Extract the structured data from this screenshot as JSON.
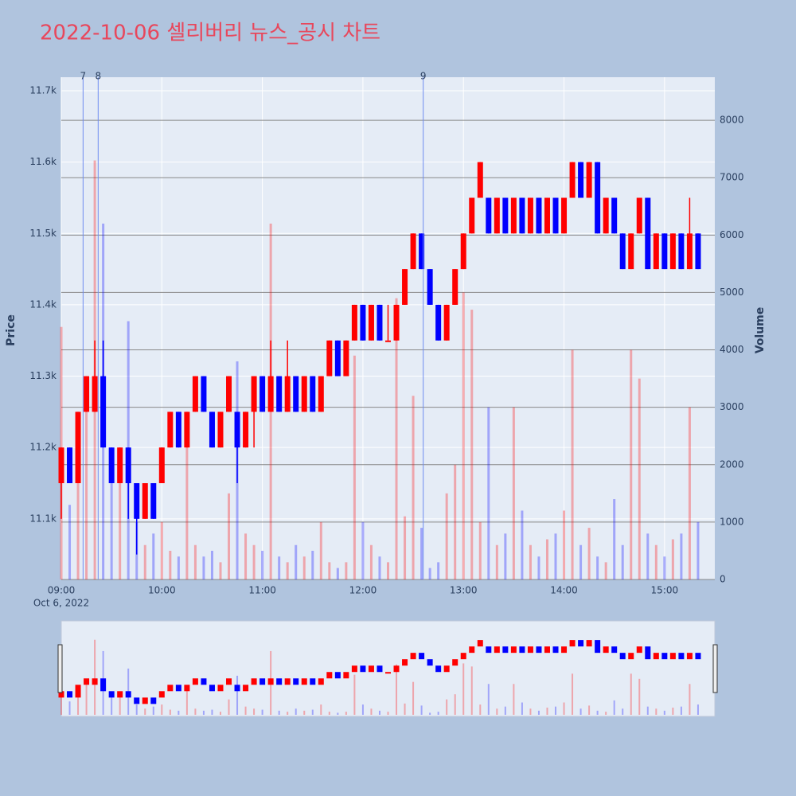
{
  "chart_data": {
    "type": "candlestick",
    "title": "2022-10-06 셀리버리 뉴스_공시 차트",
    "ylabel": "Price",
    "y2label": "Volume",
    "x_date_label": "Oct 6, 2022",
    "increasing_color": "#ff0000",
    "decreasing_color": "#0000ff",
    "xlim": [
      "09:00",
      "15:30"
    ],
    "xticks": [
      "09:00",
      "10:00",
      "11:00",
      "12:00",
      "13:00",
      "14:00",
      "15:00"
    ],
    "ylim": [
      11015,
      11719
    ],
    "yticks": [
      {
        "value": 11100,
        "label": "11.1k"
      },
      {
        "value": 11200,
        "label": "11.2k"
      },
      {
        "value": 11300,
        "label": "11.3k"
      },
      {
        "value": 11400,
        "label": "11.4k"
      },
      {
        "value": 11500,
        "label": "11.5k"
      },
      {
        "value": 11600,
        "label": "11.6k"
      },
      {
        "value": 11700,
        "label": "11.7k"
      }
    ],
    "y2lim": [
      0,
      8750
    ],
    "y2ticks": [
      0,
      1000,
      2000,
      3000,
      4000,
      5000,
      6000,
      7000,
      8000
    ],
    "annotations": [
      {
        "text": "7",
        "x": "09:13"
      },
      {
        "text": "8",
        "x": "09:22"
      },
      {
        "text": "9",
        "x": "12:36"
      }
    ],
    "x": [
      "09:00",
      "09:05",
      "09:10",
      "09:15",
      "09:20",
      "09:25",
      "09:30",
      "09:35",
      "09:40",
      "09:45",
      "09:50",
      "09:55",
      "10:00",
      "10:05",
      "10:10",
      "10:15",
      "10:20",
      "10:25",
      "10:30",
      "10:35",
      "10:40",
      "10:45",
      "10:50",
      "10:55",
      "11:00",
      "11:05",
      "11:10",
      "11:15",
      "11:20",
      "11:25",
      "11:30",
      "11:35",
      "11:40",
      "11:45",
      "11:50",
      "11:55",
      "12:00",
      "12:05",
      "12:10",
      "12:15",
      "12:20",
      "12:25",
      "12:30",
      "12:35",
      "12:40",
      "12:45",
      "12:50",
      "12:55",
      "13:00",
      "13:05",
      "13:10",
      "13:15",
      "13:20",
      "13:25",
      "13:30",
      "13:35",
      "13:40",
      "13:45",
      "13:50",
      "13:55",
      "14:00",
      "14:05",
      "14:10",
      "14:15",
      "14:20",
      "14:25",
      "14:30",
      "14:35",
      "14:40",
      "14:45",
      "14:50",
      "14:55",
      "15:00",
      "15:05",
      "15:10",
      "15:15",
      "15:20"
    ],
    "open": [
      11150,
      11200,
      11150,
      11250,
      11250,
      11300,
      11200,
      11150,
      11200,
      11150,
      11100,
      11150,
      11150,
      11200,
      11250,
      11200,
      11250,
      11300,
      11250,
      11200,
      11250,
      11250,
      11200,
      11250,
      11300,
      11250,
      11300,
      11250,
      11300,
      11250,
      11300,
      11250,
      11300,
      11350,
      11300,
      11350,
      11400,
      11350,
      11400,
      11350,
      11350,
      11400,
      11450,
      11500,
      11450,
      11400,
      11350,
      11400,
      11450,
      11500,
      11550,
      11550,
      11500,
      11550,
      11500,
      11550,
      11500,
      11550,
      11500,
      11550,
      11500,
      11550,
      11600,
      11550,
      11600,
      11500,
      11550,
      11500,
      11450,
      11500,
      11550,
      11450,
      11500,
      11450,
      11500,
      11450,
      11500
    ],
    "high": [
      11200,
      11200,
      11250,
      11300,
      11350,
      11350,
      11200,
      11200,
      11200,
      11150,
      11150,
      11150,
      11200,
      11250,
      11250,
      11250,
      11300,
      11300,
      11250,
      11250,
      11300,
      11250,
      11250,
      11300,
      11300,
      11350,
      11300,
      11350,
      11300,
      11300,
      11300,
      11300,
      11350,
      11350,
      11350,
      11400,
      11400,
      11400,
      11400,
      11400,
      11400,
      11450,
      11500,
      11500,
      11450,
      11400,
      11400,
      11450,
      11500,
      11550,
      11600,
      11550,
      11550,
      11550,
      11550,
      11550,
      11550,
      11550,
      11550,
      11550,
      11550,
      11600,
      11600,
      11600,
      11600,
      11550,
      11550,
      11500,
      11500,
      11550,
      11550,
      11500,
      11500,
      11500,
      11500,
      11550,
      11500
    ],
    "low": [
      11100,
      11150,
      11150,
      11250,
      11250,
      11200,
      11150,
      11150,
      11100,
      11050,
      11100,
      11100,
      11150,
      11200,
      11200,
      11200,
      11250,
      11250,
      11200,
      11200,
      11250,
      11150,
      11200,
      11200,
      11250,
      11250,
      11250,
      11250,
      11250,
      11250,
      11250,
      11250,
      11300,
      11300,
      11300,
      11350,
      11350,
      11350,
      11350,
      11350,
      11350,
      11400,
      11450,
      11450,
      11400,
      11350,
      11350,
      11400,
      11450,
      11500,
      11550,
      11500,
      11500,
      11500,
      11500,
      11500,
      11500,
      11500,
      11500,
      11500,
      11500,
      11550,
      11550,
      11550,
      11500,
      11500,
      11500,
      11450,
      11450,
      11500,
      11450,
      11450,
      11450,
      11450,
      11450,
      11450,
      11450
    ],
    "close": [
      11200,
      11150,
      11250,
      11300,
      11300,
      11200,
      11150,
      11200,
      11150,
      11100,
      11150,
      11100,
      11200,
      11250,
      11200,
      11250,
      11300,
      11250,
      11200,
      11250,
      11300,
      11200,
      11250,
      11300,
      11250,
      11300,
      11250,
      11300,
      11250,
      11300,
      11250,
      11300,
      11350,
      11300,
      11350,
      11400,
      11350,
      11400,
      11350,
      11350,
      11400,
      11450,
      11500,
      11450,
      11400,
      11350,
      11400,
      11450,
      11500,
      11550,
      11600,
      11500,
      11550,
      11500,
      11550,
      11500,
      11550,
      11500,
      11550,
      11500,
      11550,
      11600,
      11550,
      11600,
      11500,
      11550,
      11500,
      11450,
      11500,
      11550,
      11450,
      11500,
      11450,
      11500,
      11450,
      11500,
      11450
    ],
    "volumes": [
      4400,
      1300,
      2700,
      3500,
      7300,
      6200,
      1800,
      2200,
      4500,
      1000,
      600,
      800,
      1000,
      500,
      400,
      2500,
      600,
      400,
      500,
      300,
      1500,
      3800,
      800,
      600,
      500,
      6200,
      400,
      300,
      600,
      400,
      500,
      1000,
      300,
      200,
      300,
      3900,
      1000,
      600,
      400,
      300,
      4900,
      1100,
      3200,
      900,
      200,
      300,
      1500,
      2000,
      5000,
      4700,
      1000,
      3000,
      600,
      800,
      3000,
      1200,
      600,
      400,
      700,
      800,
      1200,
      4000,
      600,
      900,
      400,
      300,
      1400,
      600,
      4000,
      3500,
      800,
      600,
      400,
      700,
      800,
      3000,
      1000
    ]
  }
}
